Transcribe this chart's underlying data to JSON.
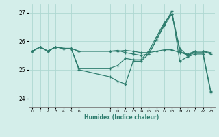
{
  "xlabel": "Humidex (Indice chaleur)",
  "bg_color": "#d4eeea",
  "line_color": "#2e7d6e",
  "grid_color": "#aed8d2",
  "ylim": [
    23.7,
    27.3
  ],
  "xlim": [
    -0.5,
    23.5
  ],
  "yticks": [
    24,
    25,
    26,
    27
  ],
  "xtick_positions": [
    0,
    1,
    2,
    3,
    4,
    5,
    6,
    10,
    11,
    12,
    13,
    14,
    15,
    16,
    17,
    18,
    19,
    20,
    21,
    22,
    23
  ],
  "xtick_labels": [
    "0",
    "1",
    "2",
    "3",
    "4",
    "5",
    "6",
    "10",
    "11",
    "12",
    "13",
    "14",
    "15",
    "16",
    "17",
    "18",
    "19",
    "20",
    "21",
    "22",
    "23"
  ],
  "line1_x": [
    0,
    1,
    2,
    3,
    4,
    5,
    6,
    10,
    11,
    12,
    13,
    14,
    15,
    16,
    17,
    18,
    19,
    20,
    21,
    22,
    23
  ],
  "line1_y": [
    25.65,
    25.8,
    25.65,
    25.8,
    25.75,
    25.75,
    25.65,
    25.65,
    25.65,
    25.68,
    25.65,
    25.6,
    25.6,
    25.65,
    25.7,
    25.7,
    25.6,
    25.55,
    25.65,
    25.65,
    25.6
  ],
  "line2_x": [
    0,
    1,
    2,
    3,
    4,
    5,
    6,
    10,
    11,
    12,
    13,
    14,
    15,
    16,
    17,
    18,
    19,
    20,
    21,
    22,
    23
  ],
  "line2_y": [
    25.65,
    25.8,
    25.65,
    25.8,
    25.75,
    25.75,
    25.05,
    25.05,
    25.15,
    25.4,
    25.35,
    25.35,
    25.65,
    26.15,
    26.65,
    26.95,
    25.75,
    25.5,
    25.65,
    25.65,
    25.55
  ],
  "line3_x": [
    0,
    1,
    2,
    3,
    4,
    5,
    6,
    10,
    11,
    12,
    13,
    14,
    15,
    16,
    17,
    18,
    19,
    20,
    21,
    22,
    23
  ],
  "line3_y": [
    25.65,
    25.8,
    25.65,
    25.8,
    25.75,
    25.75,
    25.65,
    25.65,
    25.68,
    25.6,
    25.55,
    25.5,
    25.55,
    26.05,
    26.55,
    26.95,
    25.65,
    25.5,
    25.6,
    25.6,
    24.25
  ],
  "line4_x": [
    0,
    1,
    2,
    3,
    4,
    5,
    6,
    10,
    11,
    12,
    13,
    14,
    15,
    16,
    17,
    18,
    19,
    20,
    21,
    22,
    23
  ],
  "line4_y": [
    25.65,
    25.8,
    25.65,
    25.8,
    25.75,
    25.75,
    25.0,
    24.75,
    24.6,
    24.5,
    25.3,
    25.3,
    25.55,
    26.05,
    26.6,
    27.05,
    25.3,
    25.45,
    25.55,
    25.55,
    24.2
  ]
}
